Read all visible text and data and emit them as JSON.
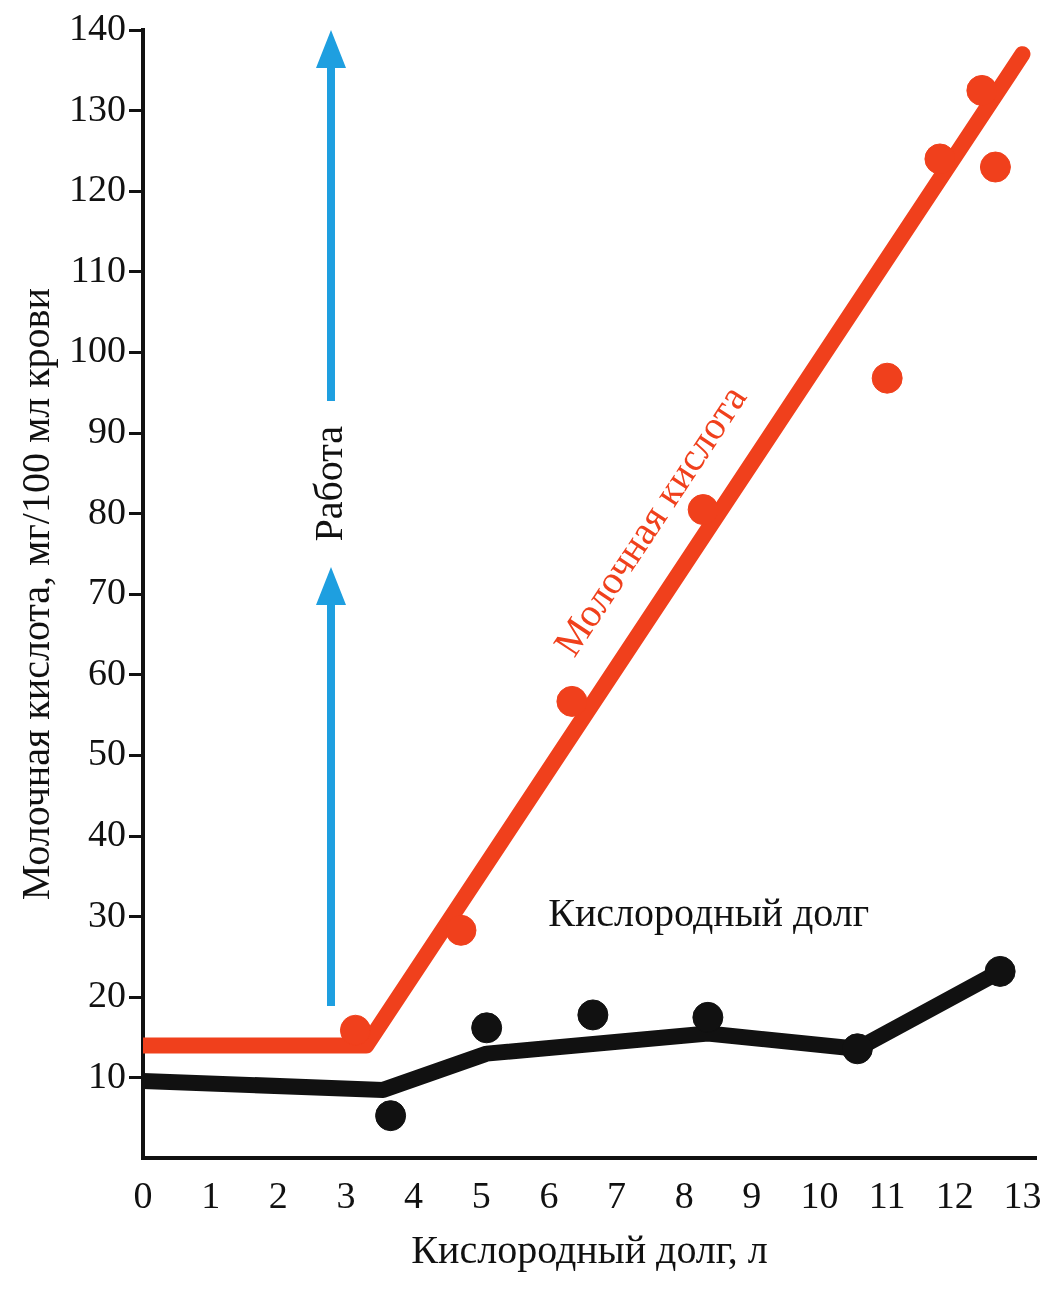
{
  "chart_data": {
    "type": "line",
    "xlabel": "Кислородный долг, л",
    "ylabel": "Молочная кислота, мг/100 мл крови",
    "xlim": [
      0,
      13.2
    ],
    "xticks": [
      0,
      1,
      2,
      3,
      4,
      5,
      6,
      7,
      8,
      9,
      10,
      11,
      12,
      13
    ],
    "ylim": [
      0,
      140
    ],
    "yticks": [
      10,
      20,
      30,
      40,
      50,
      60,
      70,
      80,
      90,
      100,
      110,
      120,
      130,
      140
    ],
    "annotations": [
      "Работа"
    ],
    "series": [
      {
        "name": "Молочная кислота",
        "color": "#f0401c",
        "marker": "none",
        "x": [
          0,
          3.3,
          13
        ],
        "values": [
          14,
          14,
          137
        ]
      },
      {
        "type": "scatter",
        "color": "#f0401c",
        "marker": "circle",
        "x": [
          3.14,
          4.7,
          6.34,
          8.28,
          11.0,
          11.78,
          12.4,
          12.6
        ],
        "values": [
          15.9,
          28.3,
          56.7,
          80.5,
          96.8,
          124,
          132.5,
          123
        ]
      },
      {
        "name": "Кислородный долг",
        "color": "#111111",
        "marker": "none",
        "x": [
          0,
          3.55,
          5.08,
          8.35,
          10.56,
          12.67
        ],
        "values": [
          9.6,
          8.5,
          13,
          15.5,
          13.6,
          23.2
        ]
      },
      {
        "type": "scatter",
        "color": "#111111",
        "marker": "circle",
        "x": [
          3.66,
          5.08,
          6.65,
          8.35,
          10.56,
          12.67
        ],
        "values": [
          5.3,
          16.2,
          17.8,
          17.5,
          13.6,
          23.2
        ]
      }
    ]
  }
}
